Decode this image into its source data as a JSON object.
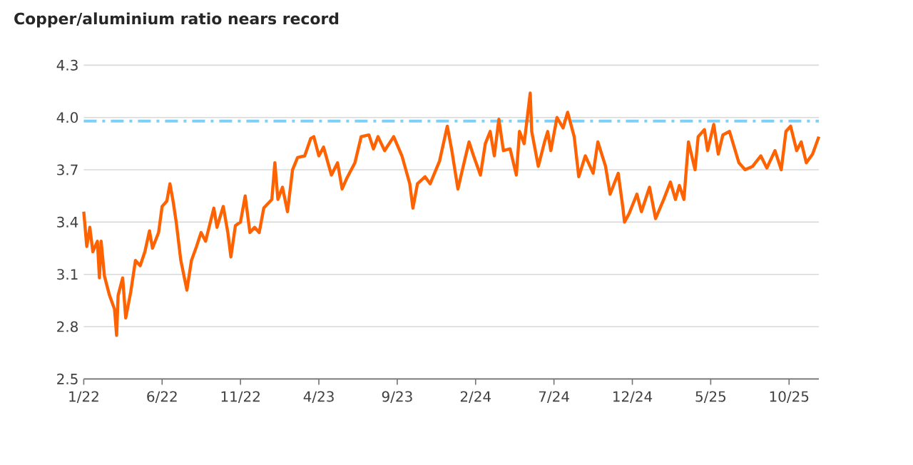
{
  "chart_data": {
    "type": "line",
    "title": "Copper/aluminium ratio nears record",
    "xlim": [
      "2022-01-01",
      "2025-11-28"
    ],
    "xticks": [
      {
        "value": "2022-01-01",
        "label": "1/22"
      },
      {
        "value": "2022-06-01",
        "label": "6/22"
      },
      {
        "value": "2022-11-01",
        "label": "11/22"
      },
      {
        "value": "2023-04-01",
        "label": "4/23"
      },
      {
        "value": "2023-09-01",
        "label": "9/23"
      },
      {
        "value": "2024-02-01",
        "label": "2/24"
      },
      {
        "value": "2024-07-01",
        "label": "7/24"
      },
      {
        "value": "2024-12-01",
        "label": "12/24"
      },
      {
        "value": "2025-05-01",
        "label": "5/25"
      },
      {
        "value": "2025-10-01",
        "label": "10/25"
      }
    ],
    "ylim": [
      2.5,
      4.3
    ],
    "yticks": [
      2.5,
      2.8,
      3.1,
      3.4,
      3.7,
      {
        "value": 4.0,
        "label": "4.0"
      },
      4.3
    ],
    "grid": "y",
    "ref_lines": [
      {
        "axis": "y",
        "value": 3.98,
        "color": "#80cff5",
        "line_style": "dashdot"
      }
    ],
    "series": [
      {
        "color": "#ff6200",
        "x": [
          "2022-01-01",
          "2022-01-07",
          "2022-01-13",
          "2022-01-19",
          "2022-01-28",
          "2022-02-01",
          "2022-02-04",
          "2022-02-10",
          "2022-02-19",
          "2022-02-28",
          "2022-03-04",
          "2022-03-07",
          "2022-03-16",
          "2022-03-22",
          "2022-04-01",
          "2022-04-10",
          "2022-04-19",
          "2022-04-28",
          "2022-05-07",
          "2022-05-13",
          "2022-05-25",
          "2022-06-01",
          "2022-06-10",
          "2022-06-16",
          "2022-06-22",
          "2022-06-28",
          "2022-07-07",
          "2022-07-19",
          "2022-07-28",
          "2022-08-07",
          "2022-08-16",
          "2022-08-25",
          "2022-09-10",
          "2022-09-16",
          "2022-09-28",
          "2022-10-07",
          "2022-10-13",
          "2022-10-22",
          "2022-11-01",
          "2022-11-10",
          "2022-11-19",
          "2022-11-28",
          "2022-12-07",
          "2022-12-16",
          "2023-01-01",
          "2023-01-07",
          "2023-01-13",
          "2023-01-22",
          "2023-02-01",
          "2023-02-10",
          "2023-02-19",
          "2023-03-04",
          "2023-03-16",
          "2023-03-22",
          "2023-04-01",
          "2023-04-10",
          "2023-04-25",
          "2023-05-07",
          "2023-05-16",
          "2023-05-25",
          "2023-06-10",
          "2023-06-22",
          "2023-07-07",
          "2023-07-16",
          "2023-07-25",
          "2023-08-07",
          "2023-08-25",
          "2023-09-10",
          "2023-09-25",
          "2023-10-01",
          "2023-10-10",
          "2023-10-25",
          "2023-11-04",
          "2023-11-22",
          "2023-12-07",
          "2023-12-16",
          "2023-12-28",
          "2024-01-10",
          "2024-01-19",
          "2024-01-28",
          "2024-02-10",
          "2024-02-19",
          "2024-02-28",
          "2024-03-07",
          "2024-03-16",
          "2024-03-25",
          "2024-04-07",
          "2024-04-19",
          "2024-04-25",
          "2024-05-04",
          "2024-05-16",
          "2024-05-19",
          "2024-06-01",
          "2024-06-13",
          "2024-06-19",
          "2024-06-25",
          "2024-07-07",
          "2024-07-19",
          "2024-07-28",
          "2024-08-10",
          "2024-08-19",
          "2024-09-01",
          "2024-09-16",
          "2024-09-25",
          "2024-10-10",
          "2024-10-19",
          "2024-11-04",
          "2024-11-13",
          "2024-11-16",
          "2024-11-25",
          "2024-12-10",
          "2024-12-19",
          "2025-01-04",
          "2025-01-16",
          "2025-02-01",
          "2025-02-13",
          "2025-02-22",
          "2025-03-01",
          "2025-03-10",
          "2025-03-19",
          "2025-04-01",
          "2025-04-07",
          "2025-04-19",
          "2025-04-25",
          "2025-05-07",
          "2025-05-16",
          "2025-05-25",
          "2025-06-07",
          "2025-06-16",
          "2025-06-25",
          "2025-07-07",
          "2025-07-22",
          "2025-08-07",
          "2025-08-19",
          "2025-09-04",
          "2025-09-16",
          "2025-09-25",
          "2025-10-04",
          "2025-10-16",
          "2025-10-25",
          "2025-11-04",
          "2025-11-16",
          "2025-11-28"
        ],
        "values": [
          3.46,
          3.26,
          3.37,
          3.23,
          3.29,
          3.08,
          3.29,
          3.09,
          2.98,
          2.9,
          2.75,
          2.98,
          3.08,
          2.85,
          3.0,
          3.18,
          3.15,
          3.23,
          3.35,
          3.25,
          3.34,
          3.49,
          3.52,
          3.62,
          3.52,
          3.4,
          3.18,
          3.01,
          3.18,
          3.26,
          3.34,
          3.29,
          3.48,
          3.37,
          3.49,
          3.34,
          3.2,
          3.38,
          3.4,
          3.55,
          3.34,
          3.37,
          3.34,
          3.48,
          3.53,
          3.74,
          3.53,
          3.6,
          3.46,
          3.7,
          3.77,
          3.78,
          3.88,
          3.89,
          3.78,
          3.83,
          3.67,
          3.74,
          3.59,
          3.65,
          3.74,
          3.89,
          3.9,
          3.82,
          3.89,
          3.81,
          3.89,
          3.78,
          3.62,
          3.48,
          3.62,
          3.66,
          3.62,
          3.75,
          3.95,
          3.81,
          3.59,
          3.75,
          3.86,
          3.78,
          3.67,
          3.85,
          3.92,
          3.78,
          3.99,
          3.81,
          3.82,
          3.67,
          3.92,
          3.85,
          4.14,
          3.92,
          3.72,
          3.86,
          3.92,
          3.81,
          4.0,
          3.94,
          4.03,
          3.89,
          3.66,
          3.78,
          3.68,
          3.86,
          3.72,
          3.56,
          3.68,
          3.48,
          3.4,
          3.45,
          3.56,
          3.46,
          3.6,
          3.42,
          3.53,
          3.63,
          3.53,
          3.61,
          3.53,
          3.86,
          3.7,
          3.89,
          3.93,
          3.81,
          3.96,
          3.79,
          3.9,
          3.92,
          3.83,
          3.74,
          3.7,
          3.72,
          3.78,
          3.71,
          3.81,
          3.7,
          3.92,
          3.95,
          3.81,
          3.86,
          3.74,
          3.79,
          3.89
        ]
      }
    ]
  }
}
